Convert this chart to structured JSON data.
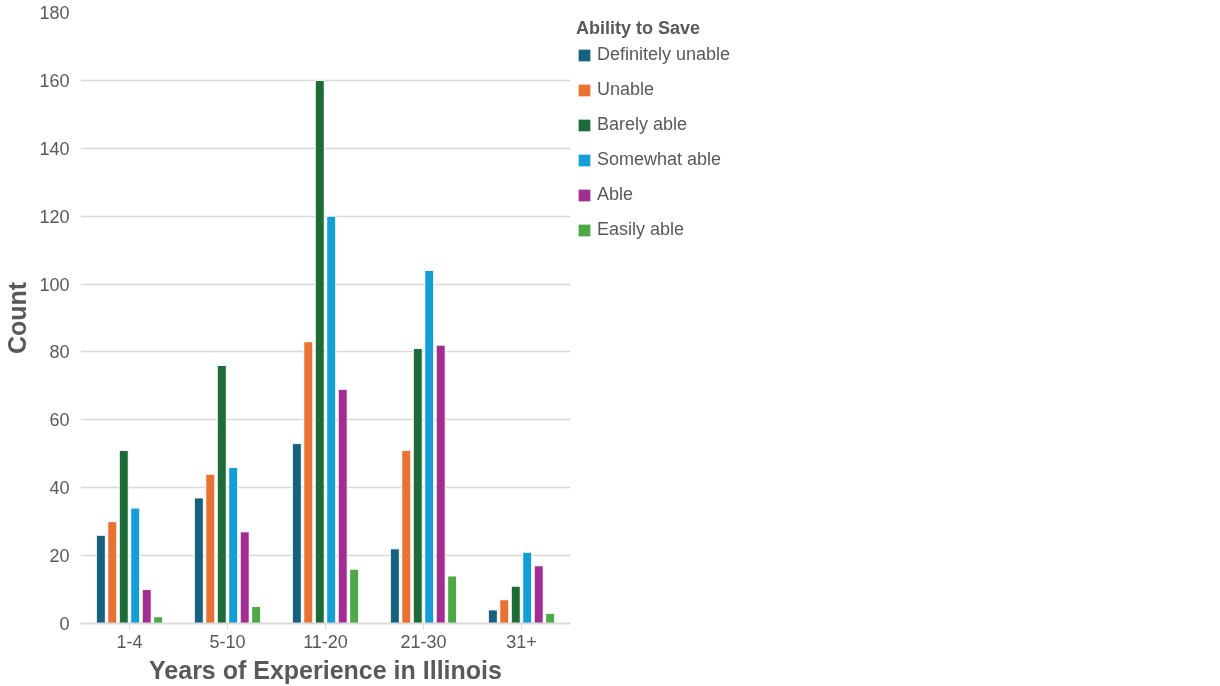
{
  "chart_data": {
    "type": "bar",
    "xlabel": "Years of Experience in Illinois",
    "ylabel": "Count",
    "legend_title": "Ability to Save",
    "categories": [
      "1-4",
      "5-10",
      "11-20",
      "21-30",
      "31+"
    ],
    "series": [
      {
        "name": "Definitely unable",
        "color": "#17607f",
        "values": [
          26,
          37,
          53,
          22,
          4
        ]
      },
      {
        "name": "Unable",
        "color": "#e97233",
        "values": [
          30,
          44,
          83,
          51,
          7
        ]
      },
      {
        "name": "Barely able",
        "color": "#1d6c38",
        "values": [
          51,
          76,
          160,
          81,
          11
        ]
      },
      {
        "name": "Somewhat able",
        "color": "#139fd6",
        "values": [
          34,
          46,
          120,
          104,
          21
        ]
      },
      {
        "name": "Able",
        "color": "#a12d91",
        "values": [
          10,
          27,
          69,
          82,
          17
        ]
      },
      {
        "name": "Easily able",
        "color": "#4ea846",
        "values": [
          2,
          5,
          16,
          14,
          3
        ]
      }
    ],
    "ylim": [
      0,
      180
    ],
    "yticks": [
      0,
      20,
      40,
      60,
      80,
      100,
      120,
      140,
      160,
      180
    ],
    "grid": "y",
    "legend": "right"
  }
}
